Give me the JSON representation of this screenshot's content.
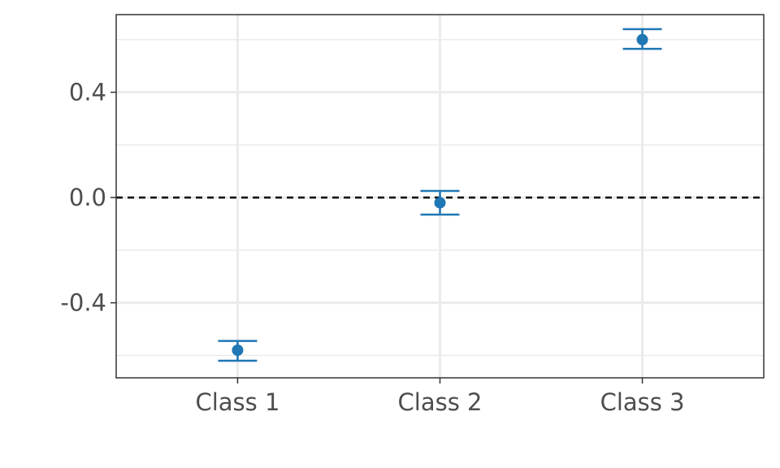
{
  "chart_data": {
    "type": "scatter",
    "title": "",
    "xlabel": "",
    "ylabel": "",
    "categories": [
      "Class 1",
      "Class 2",
      "Class 3"
    ],
    "series": [
      {
        "values": [
          -0.58,
          -0.02,
          0.6
        ],
        "lower": [
          -0.62,
          -0.065,
          0.565
        ],
        "upper": [
          -0.545,
          0.025,
          0.64
        ]
      }
    ],
    "ylim": [
      -0.685,
      0.695
    ],
    "y_ticks": [
      -0.4,
      0.0,
      0.4
    ],
    "y_tick_labels": [
      "-0.4",
      "0.0",
      "0.4"
    ],
    "y_minor_ticks": [
      -0.6,
      -0.2,
      0.2,
      0.6
    ],
    "reference_line": 0.0,
    "grid": true,
    "legend": "none",
    "colors": {
      "points": "#1f77b4",
      "reference_line": "#000000",
      "grid": "#ebebeb",
      "panel_border": "#333333",
      "tick_text": "#4d4d4d"
    }
  }
}
